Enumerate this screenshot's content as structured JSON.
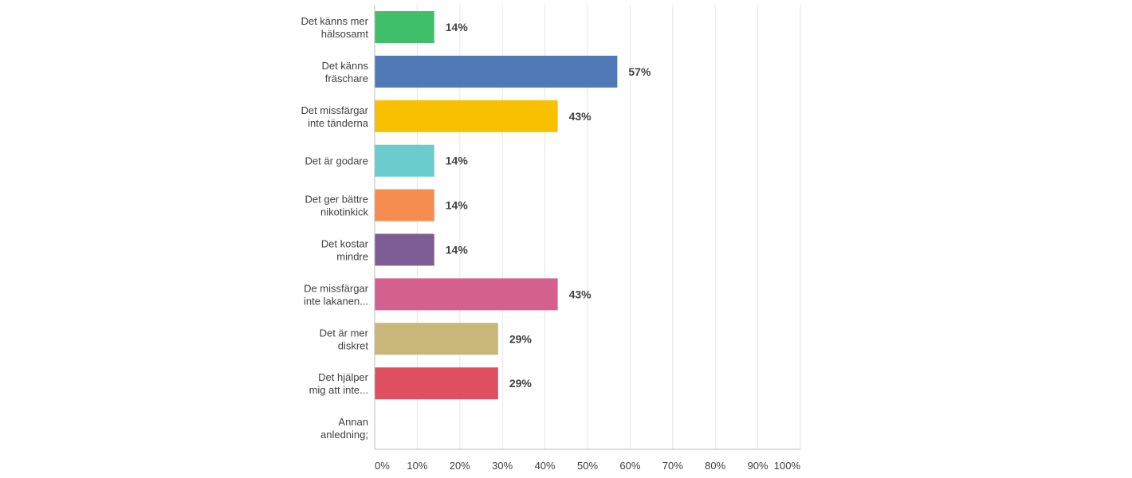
{
  "chart_data": {
    "type": "bar",
    "orientation": "horizontal",
    "categories": [
      [
        "Det känns mer",
        "hälsosamt"
      ],
      [
        "Det känns",
        "fräschare"
      ],
      [
        "Det missfärgar",
        "inte tänderna"
      ],
      [
        "Det är godare"
      ],
      [
        "Det ger bättre",
        "nikotinkick"
      ],
      [
        "Det kostar",
        "mindre"
      ],
      [
        "De missfärgar",
        "inte lakanen..."
      ],
      [
        "Det är mer",
        "diskret"
      ],
      [
        "Det hjälper",
        "mig att inte..."
      ],
      [
        "Annan",
        "anledning;"
      ]
    ],
    "values": [
      14,
      57,
      43,
      14,
      14,
      14,
      43,
      29,
      29,
      0
    ],
    "value_labels": [
      "14%",
      "57%",
      "43%",
      "14%",
      "14%",
      "14%",
      "43%",
      "29%",
      "29%",
      ""
    ],
    "colors": [
      "#3fbf6a",
      "#4f7ab7",
      "#f7c000",
      "#6acccc",
      "#f78c50",
      "#7e5c94",
      "#d4608e",
      "#c9b77a",
      "#de4f60",
      "#999999"
    ],
    "xlim": [
      0,
      100
    ],
    "x_ticks": [
      "0%",
      "10%",
      "20%",
      "30%",
      "40%",
      "50%",
      "60%",
      "70%",
      "80%",
      "90%",
      "100%"
    ],
    "grid": true,
    "legend": "none"
  }
}
